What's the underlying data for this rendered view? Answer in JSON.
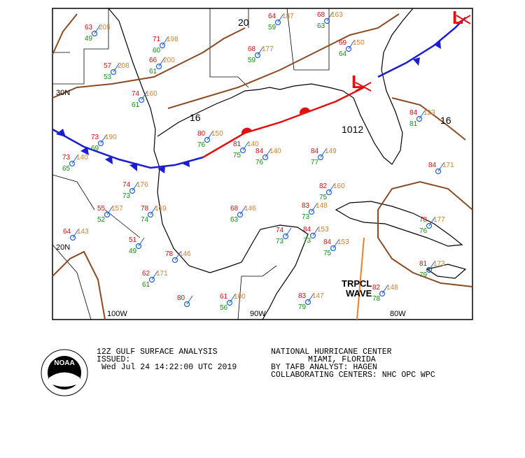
{
  "map": {
    "title": "12Z GULF SURFACE ANALYSIS",
    "grid_labels": [
      "30N",
      "20N",
      "100W",
      "90W",
      "80W"
    ],
    "isobar_labels": [
      "20",
      "16",
      "16",
      "1012"
    ],
    "pressure_centers": [
      "L",
      "L"
    ],
    "feature_labels": [
      "TRPCL",
      "WAVE"
    ],
    "stations": [
      {
        "temp": "63",
        "dew": "49",
        "pres": "205"
      },
      {
        "temp": "71",
        "dew": "60",
        "pres": "198"
      },
      {
        "temp": "68",
        "dew": "59",
        "pres": "177"
      },
      {
        "temp": "64",
        "dew": "59",
        "pres": "187"
      },
      {
        "temp": "68",
        "dew": "63",
        "pres": "163"
      },
      {
        "temp": "69",
        "dew": "64",
        "pres": "150"
      },
      {
        "temp": "57",
        "dew": "53",
        "pres": "208"
      },
      {
        "temp": "66",
        "dew": "61",
        "pres": "200"
      },
      {
        "temp": "74",
        "dew": "61",
        "pres": "160"
      },
      {
        "temp": "80",
        "dew": "76",
        "pres": "150"
      },
      {
        "temp": "81",
        "dew": "75",
        "pres": "140"
      },
      {
        "temp": "84",
        "dew": "76",
        "pres": "140"
      },
      {
        "temp": "73",
        "dew": "69",
        "pres": "190"
      },
      {
        "temp": "73",
        "dew": "65",
        "pres": "140"
      },
      {
        "temp": "74",
        "dew": "73",
        "pres": "176"
      },
      {
        "temp": "55",
        "dew": "52",
        "pres": "157"
      },
      {
        "temp": "78",
        "dew": "74",
        "pres": "169"
      },
      {
        "temp": "68",
        "dew": "63",
        "pres": "146"
      },
      {
        "temp": "64",
        "pres": "143"
      },
      {
        "temp": "84",
        "dew": "77",
        "pres": "149"
      },
      {
        "temp": "82",
        "dew": "75",
        "pres": "160"
      },
      {
        "temp": "83",
        "dew": "73",
        "pres": "148"
      },
      {
        "temp": "74",
        "dew": "73"
      },
      {
        "temp": "84",
        "dew": "73",
        "pres": "153"
      },
      {
        "temp": "84",
        "dew": "75",
        "pres": "153"
      },
      {
        "temp": "51",
        "dew": "49"
      },
      {
        "temp": "78",
        "pres": "146"
      },
      {
        "temp": "62",
        "dew": "61",
        "pres": "171"
      },
      {
        "temp": "80"
      },
      {
        "temp": "61",
        "dew": "56",
        "pres": "100"
      },
      {
        "temp": "83",
        "dew": "79",
        "pres": "147"
      },
      {
        "temp": "84",
        "dew": "81",
        "pres": "123"
      },
      {
        "temp": "84",
        "pres": "171"
      },
      {
        "temp": "78",
        "dew": "76",
        "pres": "177"
      },
      {
        "temp": "81",
        "dew": "79",
        "pres": "173"
      },
      {
        "temp": "82",
        "dew": "78",
        "pres": "148"
      }
    ]
  },
  "footer": {
    "issued_label": "ISSUED:",
    "issued_time": "Wed Jul 24 14:22:00 UTC 2019",
    "center": "NATIONAL HURRICANE CENTER",
    "location": "MIAMI, FLORIDA",
    "analyst": "BY TAFB ANALYST: HAGEN",
    "collaborating": "COLLABORATING CENTERS: NHC OPC WPC",
    "logo": "NOAA"
  }
}
